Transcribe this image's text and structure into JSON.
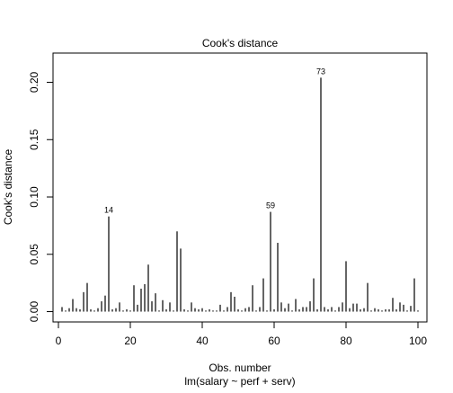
{
  "chart_data": {
    "type": "bar",
    "panel_title": "Cook's distance",
    "xlabel": "Obs. number",
    "ylabel": "Cook's distance",
    "subtitle": "lm(salary ~ perf + serv)",
    "xlim": [
      -1.5,
      102.5
    ],
    "ylim": [
      -0.009,
      0.2255
    ],
    "xticks": [
      0,
      20,
      40,
      60,
      80,
      100
    ],
    "yticks": [
      0.0,
      0.05,
      0.1,
      0.15,
      0.2
    ],
    "ytick_labels": [
      "0.00",
      "0.05",
      "0.10",
      "0.15",
      "0.20"
    ],
    "x": [
      1,
      2,
      3,
      4,
      5,
      6,
      7,
      8,
      9,
      10,
      11,
      12,
      13,
      14,
      15,
      16,
      17,
      18,
      19,
      20,
      21,
      22,
      23,
      24,
      25,
      26,
      27,
      28,
      29,
      30,
      31,
      32,
      33,
      34,
      35,
      36,
      37,
      38,
      39,
      40,
      41,
      42,
      43,
      44,
      45,
      46,
      47,
      48,
      49,
      50,
      51,
      52,
      53,
      54,
      55,
      56,
      57,
      58,
      59,
      60,
      61,
      62,
      63,
      64,
      65,
      66,
      67,
      68,
      69,
      70,
      71,
      72,
      73,
      74,
      75,
      76,
      77,
      78,
      79,
      80,
      81,
      82,
      83,
      84,
      85,
      86,
      87,
      88,
      89,
      90,
      91,
      92,
      93,
      94,
      95,
      96,
      97,
      98,
      99,
      100
    ],
    "values": [
      0.004,
      0.001,
      0.003,
      0.011,
      0.003,
      0.002,
      0.017,
      0.025,
      0.002,
      0.001,
      0.003,
      0.009,
      0.014,
      0.083,
      0.002,
      0.003,
      0.008,
      0.001,
      0.002,
      0.001,
      0.023,
      0.006,
      0.02,
      0.024,
      0.041,
      0.009,
      0.016,
      0.001,
      0.01,
      0.002,
      0.008,
      0.001,
      0.07,
      0.055,
      0.002,
      0.001,
      0.008,
      0.003,
      0.002,
      0.003,
      0.001,
      0.002,
      0.001,
      0.001,
      0.006,
      0.001,
      0.004,
      0.017,
      0.013,
      0.002,
      0.001,
      0.003,
      0.004,
      0.023,
      0.001,
      0.004,
      0.029,
      0.001,
      0.087,
      0.002,
      0.06,
      0.008,
      0.003,
      0.007,
      0.001,
      0.011,
      0.002,
      0.004,
      0.004,
      0.009,
      0.029,
      0.002,
      0.204,
      0.004,
      0.002,
      0.004,
      0.001,
      0.004,
      0.008,
      0.044,
      0.003,
      0.007,
      0.007,
      0.002,
      0.003,
      0.025,
      0.001,
      0.003,
      0.002,
      0.001,
      0.002,
      0.002,
      0.012,
      0.002,
      0.008,
      0.006,
      0.001,
      0.005,
      0.029,
      0.001
    ],
    "point_labels": [
      {
        "x": 14,
        "text": "14"
      },
      {
        "x": 59,
        "text": "59"
      },
      {
        "x": 73,
        "text": "73"
      }
    ],
    "bar_color": "#000000",
    "grid": false,
    "legend": "none"
  }
}
